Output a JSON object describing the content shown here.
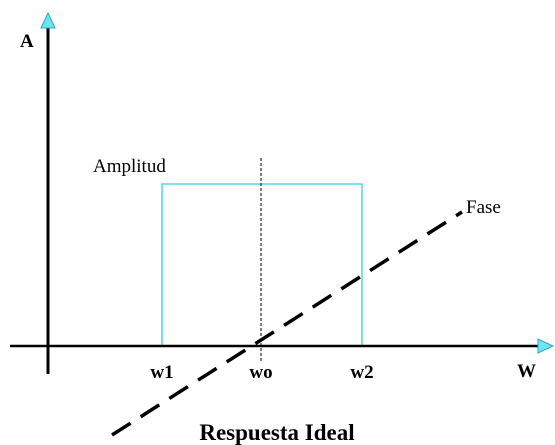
{
  "diagram": {
    "title": "Respuesta Ideal",
    "y_axis_label": "A",
    "x_axis_label": "W",
    "x_labels": [
      "w1",
      "wo",
      "w2"
    ],
    "amplitude_label": "Amplitud",
    "phase_label": "Fase"
  }
}
